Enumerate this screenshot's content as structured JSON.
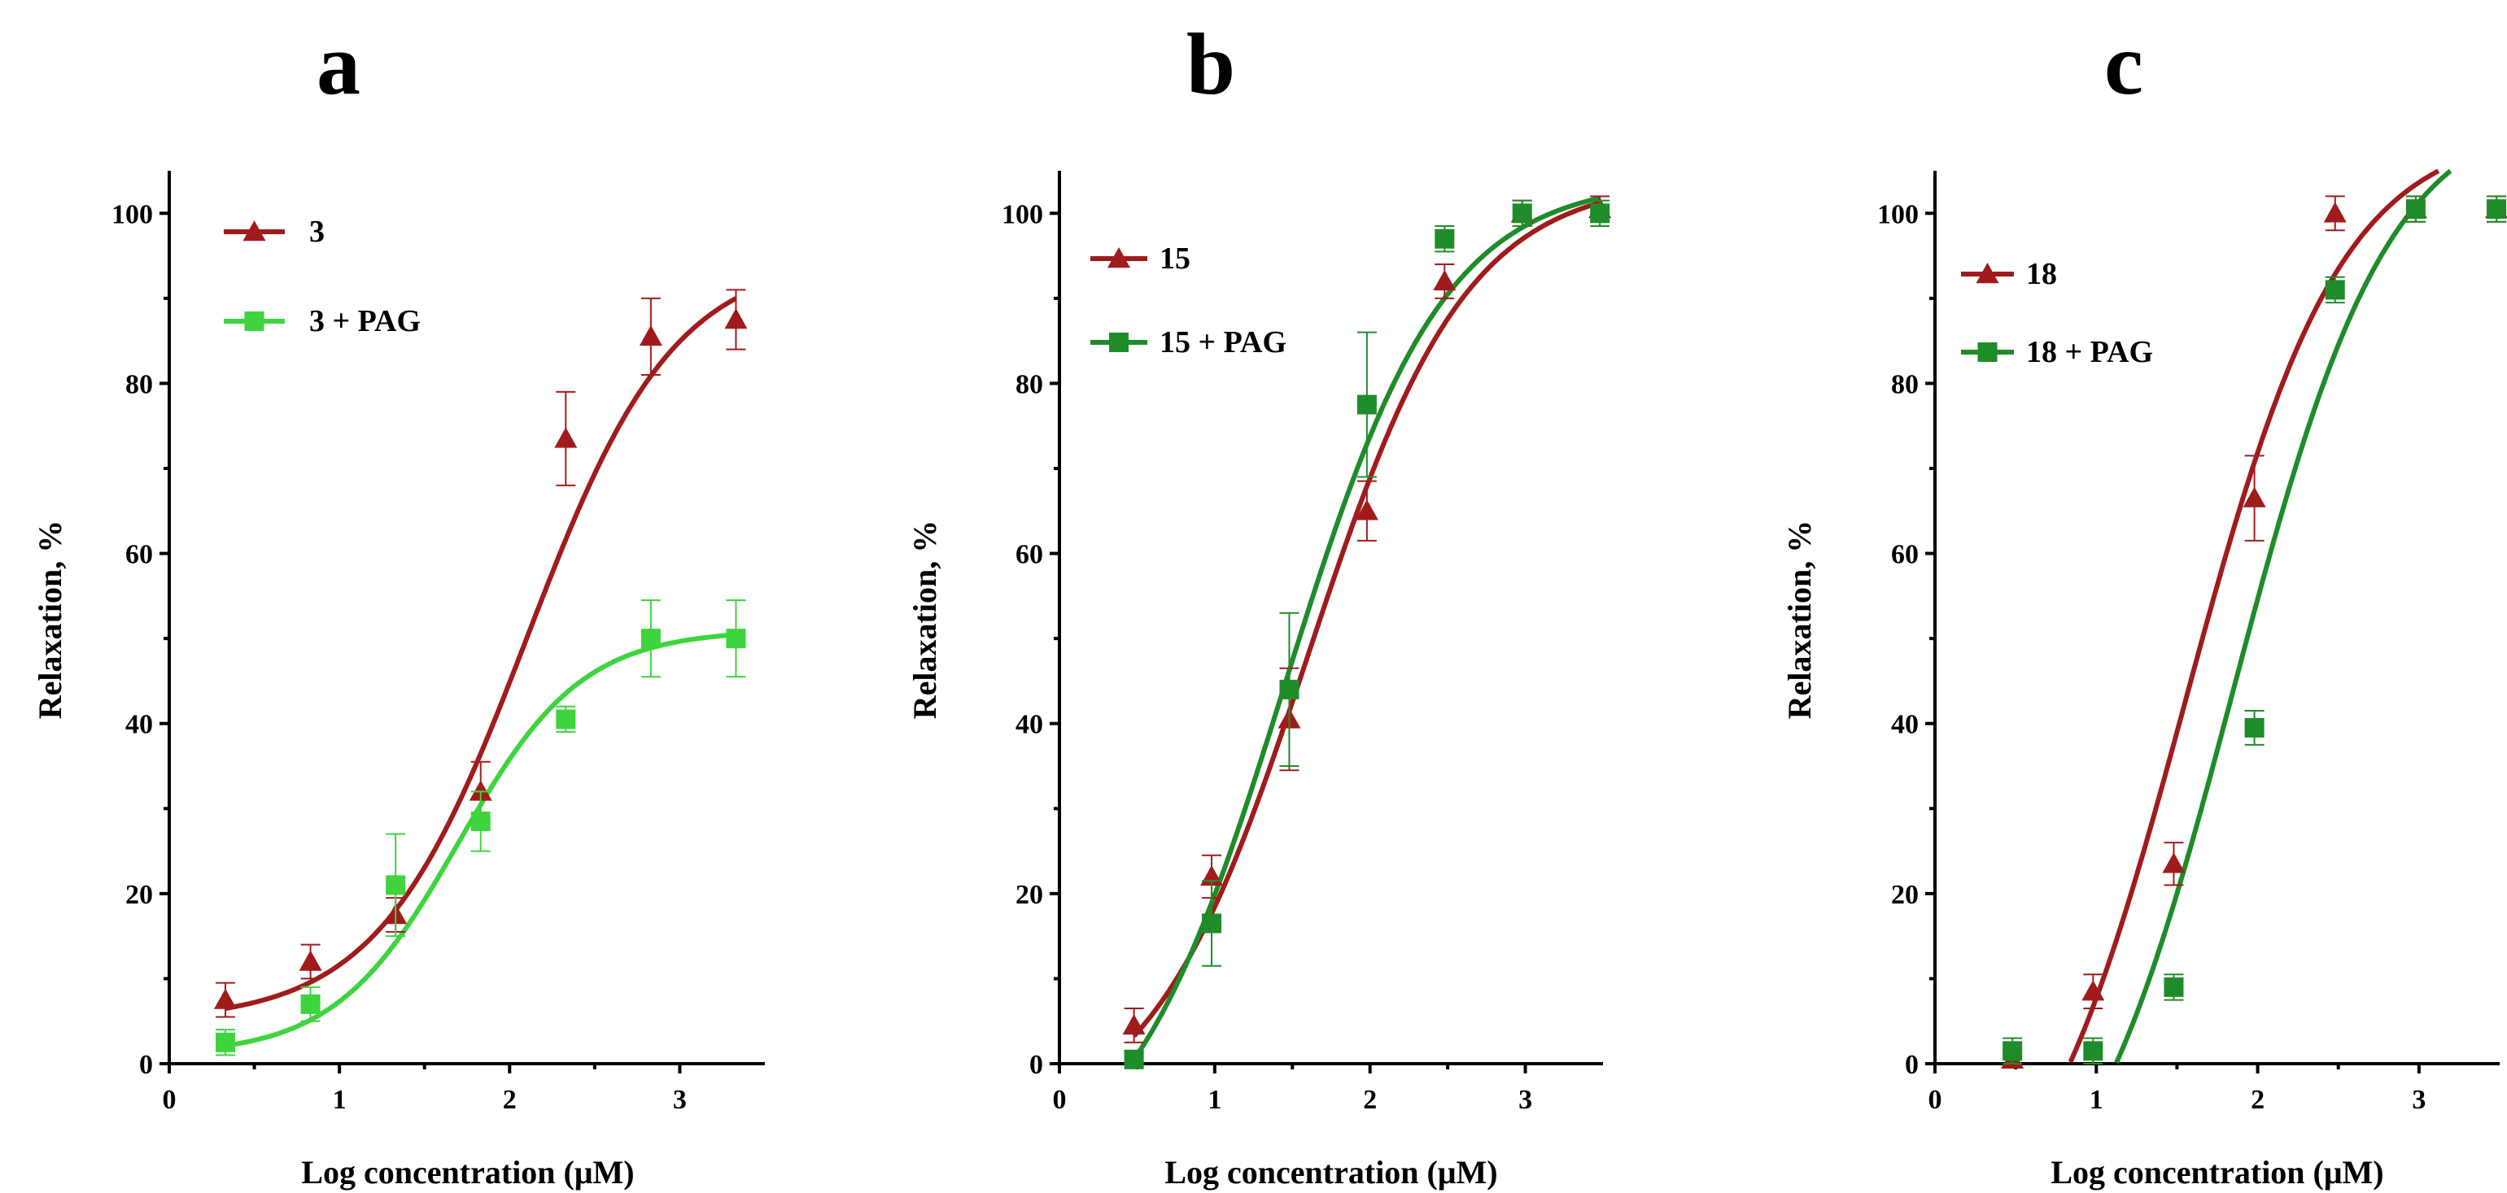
{
  "colors": {
    "dark_red": "#a01c1c",
    "light_green": "#3ed43e",
    "dark_green": "#1f8c2a"
  },
  "chart_data": [
    {
      "type": "line",
      "panel_label": "a",
      "xlabel": "Log concentration (μM)",
      "ylabel": "Relaxation, %",
      "xlim": [
        0,
        3.5
      ],
      "ylim": [
        0,
        105
      ],
      "x_ticks": [
        "0",
        "1",
        "2",
        "3"
      ],
      "y_ticks": [
        "0",
        "20",
        "40",
        "60",
        "80",
        "100"
      ],
      "legend_position": "top-left",
      "series": [
        {
          "name": "3",
          "color": "#a01c1c",
          "marker": "triangle",
          "x": [
            0.33,
            0.83,
            1.33,
            1.83,
            2.33,
            2.83,
            3.33
          ],
          "y": [
            7.5,
            12,
            17.5,
            32,
            73.5,
            85.5,
            87.5
          ],
          "err": [
            2,
            2,
            2,
            3.5,
            5.5,
            4.5,
            3.5
          ],
          "fit": {
            "bottom": 5,
            "top": 95,
            "logec50": 2.1,
            "hill": 1.0
          }
        },
        {
          "name": "3 + PAG",
          "color": "#3ed43e",
          "marker": "square",
          "x": [
            0.33,
            0.83,
            1.33,
            1.83,
            2.33,
            2.83,
            3.33
          ],
          "y": [
            2.5,
            7,
            21,
            28.5,
            40.5,
            50,
            50
          ],
          "err": [
            1.5,
            2,
            6,
            3.5,
            1.5,
            4.5,
            4.5
          ],
          "fit": {
            "bottom": 1,
            "top": 51,
            "logec50": 1.7,
            "hill": 1.2
          }
        }
      ]
    },
    {
      "type": "line",
      "panel_label": "b",
      "xlabel": "Log concentration (μM)",
      "ylabel": "Relaxation, %",
      "xlim": [
        0,
        3.5
      ],
      "ylim": [
        0,
        105
      ],
      "x_ticks": [
        "0",
        "1",
        "2",
        "3"
      ],
      "y_ticks": [
        "0",
        "20",
        "40",
        "60",
        "80",
        "100"
      ],
      "legend_position": "top-left",
      "series": [
        {
          "name": "15",
          "color": "#a01c1c",
          "marker": "triangle",
          "x": [
            0.48,
            0.98,
            1.48,
            1.98,
            2.48,
            2.98,
            3.48
          ],
          "y": [
            4.5,
            22,
            40.5,
            65,
            92,
            100,
            100.5
          ],
          "err": [
            2,
            2.5,
            6,
            3.5,
            2,
            1.5,
            1.5
          ],
          "fit": {
            "bottom": -8,
            "top": 104,
            "logec50": 1.6,
            "hill": 0.85
          }
        },
        {
          "name": "15 + PAG",
          "color": "#1f8c2a",
          "marker": "square",
          "x": [
            0.48,
            0.98,
            1.48,
            1.98,
            2.48,
            2.98,
            3.48
          ],
          "y": [
            0.5,
            16.5,
            44,
            77.5,
            97,
            100,
            100
          ],
          "err": [
            1,
            5,
            9,
            8.5,
            1.5,
            1.5,
            1.5
          ],
          "fit": {
            "bottom": -15,
            "top": 104,
            "logec50": 1.45,
            "hill": 0.85
          }
        }
      ]
    },
    {
      "type": "line",
      "panel_label": "c",
      "xlabel": "Log concentration (μM)",
      "ylabel": "Relaxation, %",
      "xlim": [
        0,
        3.5
      ],
      "ylim": [
        0,
        105
      ],
      "x_ticks": [
        "0",
        "1",
        "2",
        "3"
      ],
      "y_ticks": [
        "0",
        "20",
        "40",
        "60",
        "80",
        "100"
      ],
      "legend_position": "top-left",
      "series": [
        {
          "name": "18",
          "color": "#a01c1c",
          "marker": "triangle",
          "x": [
            0.48,
            0.98,
            1.48,
            1.98,
            2.48,
            2.98,
            3.48
          ],
          "y": [
            0.5,
            8.5,
            23.5,
            66.5,
            100,
            100.5,
            100.5
          ],
          "err": [
            1,
            2,
            2.5,
            5,
            2,
            1.5,
            1.5
          ],
          "fit": {
            "bottom": -25,
            "top": 110,
            "logec50": 1.55,
            "hill": 0.9
          }
        },
        {
          "name": "18 + PAG",
          "color": "#1f8c2a",
          "marker": "square",
          "x": [
            0.48,
            0.98,
            1.48,
            1.98,
            2.48,
            2.98,
            3.48
          ],
          "y": [
            1.5,
            1.5,
            9,
            39.5,
            91,
            100.5,
            100.5
          ],
          "err": [
            1.5,
            1.5,
            1.5,
            2,
            1.5,
            1.5,
            1.5
          ],
          "fit": {
            "bottom": -25,
            "top": 113,
            "logec50": 1.85,
            "hill": 0.9
          }
        }
      ]
    }
  ]
}
